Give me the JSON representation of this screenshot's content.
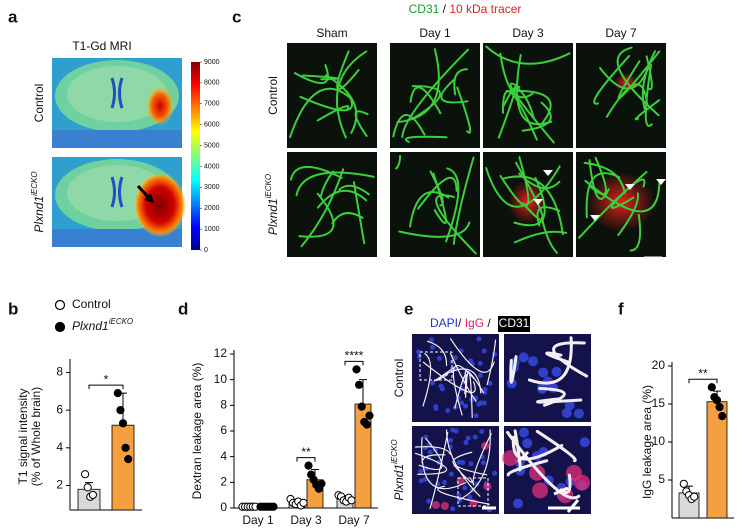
{
  "panels": {
    "a": {
      "letter": "a",
      "title": "T1-Gd MRI",
      "rows": [
        {
          "label": "Control"
        },
        {
          "label": "Plxnd1",
          "sup": "iECKO"
        }
      ],
      "colorbar_lim": [
        0,
        9000
      ],
      "colorbar_ticks": [
        0,
        1000,
        2000,
        3000,
        4000,
        5000,
        6000,
        7000,
        8000,
        9000
      ]
    },
    "b": {
      "letter": "b"
    },
    "c": {
      "letter": "c",
      "header": [
        "CD31",
        " / ",
        "10 kDa tracer"
      ],
      "header_colors": [
        "#1a9a2a",
        "#111111",
        "#e02020"
      ],
      "columns": [
        "Sham",
        "Day 1",
        "Day 3",
        "Day 7"
      ],
      "rows": [
        {
          "label": "Control"
        },
        {
          "label": "Plxnd1",
          "sup": "iECKO"
        }
      ]
    },
    "d": {
      "letter": "d"
    },
    "e": {
      "letter": "e",
      "header": [
        "DAPI",
        "/ ",
        "IgG",
        " / "
      ],
      "header_colors": [
        "#2030c0",
        "#111111",
        "#e0206a",
        "#111111"
      ],
      "header_box": "CD31",
      "rows": [
        {
          "label": "Control"
        },
        {
          "label": "Plxnd1",
          "sup": "iECKO"
        }
      ]
    },
    "f": {
      "letter": "f"
    }
  },
  "chart_data": [
    {
      "type": "bar",
      "ylabel": [
        "T1 signal intensity",
        "(% of Whole brain)"
      ],
      "categories": [
        null
      ],
      "ylim": [
        0.7,
        8.5
      ],
      "yticks": [
        2,
        4,
        6,
        8
      ],
      "legend": true,
      "series": [
        {
          "name": "Control",
          "color": "#d9d9d9",
          "marker_fill": "#ffffff",
          "values": [
            1.8
          ],
          "errors": [
            0.35
          ],
          "points": [
            [
              2.6,
              1.9,
              1.4,
              1.5
            ]
          ]
        },
        {
          "name": "Plxnd1",
          "name_sup": "iECKO",
          "color": "#f5a040",
          "marker_fill": "#000000",
          "values": [
            5.2
          ],
          "errors": [
            1.7
          ],
          "points": [
            [
              6.9,
              6.0,
              5.3,
              4.0,
              3.4
            ]
          ]
        }
      ],
      "significance": [
        {
          "category": 0,
          "label": "*"
        }
      ]
    },
    {
      "type": "bar",
      "ylabel": [
        "Dextran leakage area (%)"
      ],
      "categories": [
        "Day 1",
        "Day 3",
        "Day 7"
      ],
      "ylim": [
        0,
        12
      ],
      "yticks": [
        0,
        2,
        4,
        6,
        8,
        10,
        12
      ],
      "legend": false,
      "series": [
        {
          "color": "#d9d9d9",
          "marker_fill": "#ffffff",
          "values": [
            0.1,
            0.4,
            0.7
          ],
          "errors": [
            0.05,
            0.2,
            0.25
          ],
          "points": [
            [
              0.1,
              0.1,
              0.1,
              0.1,
              0.1,
              0.1
            ],
            [
              0.7,
              0.4,
              0.3,
              0.5,
              0.2,
              0.4
            ],
            [
              1.0,
              0.9,
              0.6,
              0.5,
              0.8,
              0.6
            ]
          ]
        },
        {
          "color": "#f5a040",
          "marker_fill": "#000000",
          "values": [
            0.1,
            2.2,
            8.1
          ],
          "errors": [
            0.05,
            0.8,
            1.9
          ],
          "points": [
            [
              0.1,
              0.1,
              0.1,
              0.1,
              0.1,
              0.1
            ],
            [
              3.3,
              2.6,
              2.2,
              1.8,
              1.5,
              1.9
            ],
            [
              10.8,
              9.6,
              7.9,
              6.7,
              6.5,
              7.2
            ]
          ]
        }
      ],
      "significance": [
        {
          "category": 1,
          "label": "**"
        },
        {
          "category": 2,
          "label": "****"
        }
      ]
    },
    {
      "type": "bar",
      "ylabel": [
        "IgG leakage area (%)"
      ],
      "categories": [
        null
      ],
      "ylim": [
        0,
        20
      ],
      "yticks": [
        5,
        10,
        15,
        20
      ],
      "legend": false,
      "series": [
        {
          "color": "#d9d9d9",
          "marker_fill": "#ffffff",
          "values": [
            3.3
          ],
          "errors": [
            0.9
          ],
          "points": [
            [
              4.5,
              3.5,
              3.0,
              2.5,
              2.8
            ]
          ]
        },
        {
          "color": "#f5a040",
          "marker_fill": "#000000",
          "values": [
            15.3
          ],
          "errors": [
            1.4
          ],
          "points": [
            [
              17.2,
              15.9,
              15.5,
              14.6,
              13.4
            ]
          ]
        }
      ],
      "significance": [
        {
          "category": 0,
          "label": "**"
        }
      ]
    }
  ]
}
